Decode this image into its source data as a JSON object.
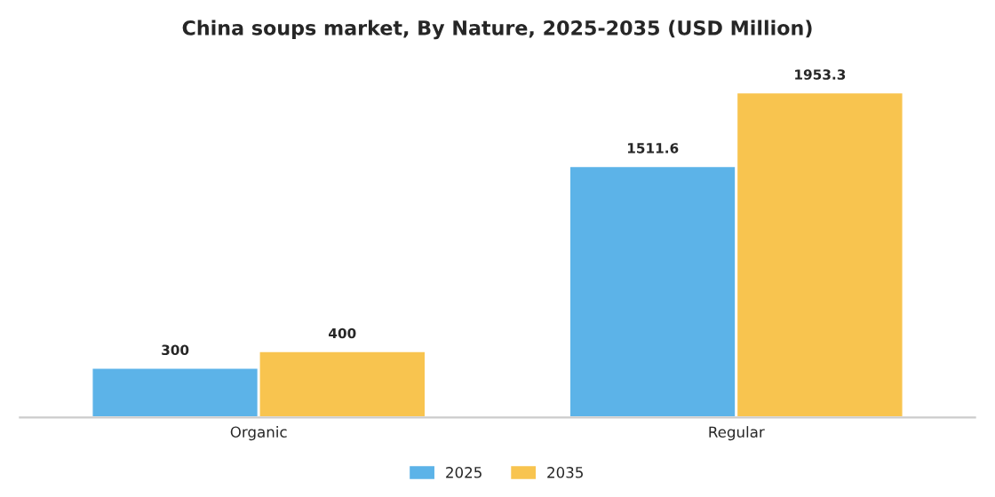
{
  "chart_data": {
    "type": "bar",
    "title": "China soups market, By Nature, 2025-2035 (USD Million)",
    "categories": [
      "Organic",
      "Regular"
    ],
    "series": [
      {
        "name": "2025",
        "color": "#5cb3e8",
        "values": [
          300,
          1511.6
        ]
      },
      {
        "name": "2035",
        "color": "#f8c44f",
        "values": [
          400,
          1953.3
        ]
      }
    ],
    "data_labels": true,
    "legend": "bottom",
    "grid": false
  }
}
